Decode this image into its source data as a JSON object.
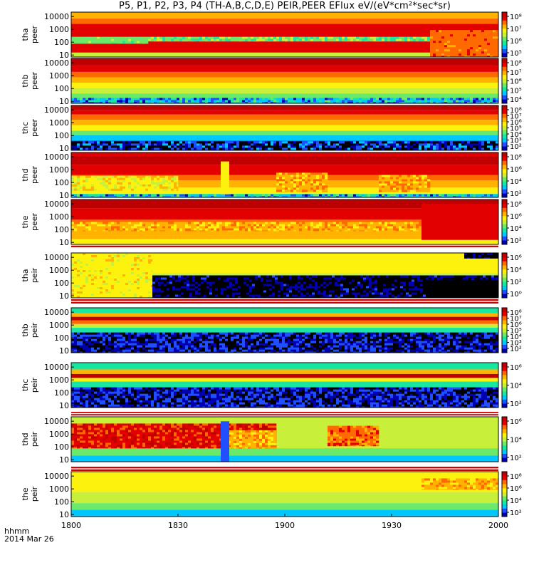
{
  "title": "P5, P1, P2, P3, P4 (TH-A,B,C,D,E) PEIR,PEER EFlux eV/(eV*cm²*sec*sr)",
  "footer": {
    "time_label": "hhmm",
    "date_label": "2014 Mar 26"
  },
  "colors": {
    "spectrum": [
      "#000000",
      "#0000b0",
      "#1f4fff",
      "#00c8ff",
      "#19e6a0",
      "#6be96b",
      "#c8ef3a",
      "#fdf10e",
      "#ffb300",
      "#ff6a00",
      "#e20000",
      "#c00000"
    ]
  },
  "chart_data": {
    "type": "heatmap",
    "x_axis": {
      "tick_labels": [
        "1800",
        "1830",
        "1900",
        "1930",
        "2000"
      ],
      "range": [
        "18:00",
        "20:00"
      ]
    },
    "y_axis": {
      "scale": "log",
      "tick_labels": [
        "10",
        "100",
        "1000",
        "10000"
      ]
    },
    "colorbar_scale": "log",
    "panels": [
      {
        "id": "tha-peer",
        "ylabel_top": "tha",
        "ylabel_bottom": "peer",
        "colorbar_ticks": [
          "10⁵",
          "10⁶",
          "10⁷",
          "10⁸"
        ],
        "y_rows": [
          [
            0.0,
            0.74,
            10
          ],
          [
            0.74,
            0.86,
            9
          ],
          [
            0.86,
            1.0,
            8
          ]
        ],
        "features": [
          {
            "x": [
              0.0,
              1.0
            ],
            "y": [
              0.0,
              0.1
            ],
            "level": 6
          },
          {
            "x": [
              0.0,
              0.18
            ],
            "y": [
              0.3,
              0.45
            ],
            "level": 5,
            "noise": 0.2
          },
          {
            "x": [
              0.18,
              0.86
            ],
            "y": [
              0.35,
              0.45
            ],
            "level": 5,
            "noise": 0.4
          },
          {
            "x": [
              0.84,
              1.0
            ],
            "y": [
              0.0,
              0.6
            ],
            "level": 9,
            "noise": 0.2
          }
        ]
      },
      {
        "id": "thb-peer",
        "ylabel_top": "thb",
        "ylabel_bottom": "peer",
        "colorbar_ticks": [
          "10⁴",
          "10⁵",
          "10⁶",
          "10⁷",
          "10⁸"
        ],
        "y_rows": [
          [
            0.0,
            0.1,
            4
          ],
          [
            0.1,
            0.22,
            5
          ],
          [
            0.22,
            0.34,
            6
          ],
          [
            0.34,
            0.46,
            7
          ],
          [
            0.46,
            0.58,
            8
          ],
          [
            0.58,
            0.7,
            9
          ],
          [
            0.7,
            0.84,
            10
          ],
          [
            0.84,
            1.0,
            11
          ]
        ],
        "features": [
          {
            "x": [
              0.0,
              1.0
            ],
            "y": [
              0.0,
              0.12
            ],
            "level": 3,
            "noise": 0.6
          }
        ]
      },
      {
        "id": "thc-peer",
        "ylabel_top": "thc",
        "ylabel_bottom": "peer",
        "colorbar_ticks": [
          "10²",
          "10³",
          "10⁴",
          "10⁵",
          "10⁶",
          "10⁷",
          "10⁸"
        ],
        "y_rows": [
          [
            0.0,
            0.12,
            1
          ],
          [
            0.12,
            0.22,
            2
          ],
          [
            0.22,
            0.34,
            3
          ],
          [
            0.34,
            0.44,
            5
          ],
          [
            0.44,
            0.56,
            7
          ],
          [
            0.56,
            0.68,
            8
          ],
          [
            0.68,
            0.8,
            9
          ],
          [
            0.8,
            0.9,
            10
          ],
          [
            0.9,
            1.0,
            11
          ]
        ],
        "features": [
          {
            "x": [
              0.0,
              1.0
            ],
            "y": [
              0.0,
              0.2
            ],
            "level": 1,
            "noise": 0.7
          }
        ]
      },
      {
        "id": "thd-peer",
        "ylabel_top": "thd",
        "ylabel_bottom": "peer",
        "colorbar_ticks": [
          "10²",
          "10⁴",
          "10⁶",
          "10⁸"
        ],
        "y_rows": [
          [
            0.0,
            0.08,
            5
          ],
          [
            0.08,
            0.22,
            7
          ],
          [
            0.22,
            0.38,
            8
          ],
          [
            0.38,
            0.5,
            9
          ],
          [
            0.5,
            0.72,
            10
          ],
          [
            0.72,
            0.92,
            11
          ],
          [
            0.92,
            1.0,
            10
          ]
        ],
        "features": [
          {
            "x": [
              0.0,
              0.25
            ],
            "y": [
              0.15,
              0.48
            ],
            "level": 7,
            "noise": 0.3
          },
          {
            "x": [
              0.35,
              0.37
            ],
            "y": [
              0.0,
              0.8
            ],
            "level": 7
          },
          {
            "x": [
              0.48,
              0.6
            ],
            "y": [
              0.12,
              0.55
            ],
            "level": 8,
            "noise": 0.3
          },
          {
            "x": [
              0.72,
              0.84
            ],
            "y": [
              0.12,
              0.5
            ],
            "level": 8,
            "noise": 0.3
          },
          {
            "x": [
              0.0,
              1.0
            ],
            "y": [
              0.0,
              0.07
            ],
            "level": 3,
            "noise": 0.6
          }
        ]
      },
      {
        "id": "the-peer",
        "ylabel_top": "the",
        "ylabel_bottom": "peer",
        "colorbar_ticks": [
          "10²",
          "10⁴",
          "10⁶",
          "10⁸"
        ],
        "y_rows": [
          [
            0.0,
            0.12,
            7
          ],
          [
            0.12,
            0.3,
            8
          ],
          [
            0.3,
            0.55,
            9
          ],
          [
            0.55,
            0.8,
            10
          ],
          [
            0.8,
            1.0,
            11
          ]
        ],
        "features": [
          {
            "x": [
              0.0,
              0.82
            ],
            "y": [
              0.3,
              0.5
            ],
            "level": 8,
            "noise": 0.3
          },
          {
            "x": [
              0.82,
              1.0
            ],
            "y": [
              0.1,
              0.9
            ],
            "level": 10
          }
        ]
      },
      {
        "id": "tha-peir",
        "ylabel_top": "tha",
        "ylabel_bottom": "peir",
        "colorbar_ticks": [
          "10⁰",
          "10²",
          "10⁴",
          "10⁶"
        ],
        "y_rows": [
          [
            0.0,
            0.2,
            6
          ],
          [
            0.2,
            0.55,
            6
          ],
          [
            0.55,
            1.0,
            7
          ]
        ],
        "features": [
          {
            "x": [
              0.0,
              0.19
            ],
            "y": [
              0.0,
              1.0
            ],
            "level": 7,
            "noise": 0.2
          },
          {
            "x": [
              0.19,
              1.0
            ],
            "y": [
              0.0,
              0.5
            ],
            "level": 0,
            "noise": 0.55
          },
          {
            "x": [
              0.83,
              1.0
            ],
            "y": [
              0.0,
              0.4
            ],
            "level": 0
          },
          {
            "x": [
              0.92,
              1.0
            ],
            "y": [
              0.88,
              1.0
            ],
            "level": 0,
            "noise": 0.5
          }
        ]
      },
      {
        "id": "thb-peir",
        "ylabel_top": "thb",
        "ylabel_bottom": "peir",
        "colorbar_ticks": [
          "10²",
          "10³",
          "10⁴",
          "10⁵",
          "10⁶",
          "10⁷",
          "10⁸"
        ],
        "y_rows": [
          [
            0.0,
            0.45,
            2
          ],
          [
            0.45,
            0.56,
            4
          ],
          [
            0.56,
            0.64,
            6
          ],
          [
            0.64,
            0.72,
            9
          ],
          [
            0.72,
            0.8,
            11
          ],
          [
            0.8,
            0.88,
            8
          ],
          [
            0.88,
            1.0,
            4
          ]
        ],
        "features": [
          {
            "x": [
              0.0,
              1.0
            ],
            "y": [
              0.0,
              0.45
            ],
            "level": 1,
            "noise": 0.5
          }
        ]
      },
      {
        "id": "thc-peir",
        "ylabel_top": "thc",
        "ylabel_bottom": "peir",
        "colorbar_ticks": [
          "10²",
          "10⁴",
          "10⁶"
        ],
        "y_rows": [
          [
            0.0,
            0.45,
            2
          ],
          [
            0.45,
            0.58,
            4
          ],
          [
            0.58,
            0.66,
            7
          ],
          [
            0.66,
            0.75,
            11
          ],
          [
            0.75,
            0.85,
            8
          ],
          [
            0.85,
            1.0,
            4
          ]
        ],
        "features": [
          {
            "x": [
              0.0,
              1.0
            ],
            "y": [
              0.0,
              0.45
            ],
            "level": 1,
            "noise": 0.5
          }
        ]
      },
      {
        "id": "thd-peir",
        "ylabel_top": "thd",
        "ylabel_bottom": "peir",
        "colorbar_ticks": [
          "10²",
          "10⁴",
          "10⁶"
        ],
        "y_rows": [
          [
            0.0,
            0.14,
            3
          ],
          [
            0.14,
            0.3,
            5
          ],
          [
            0.3,
            1.0,
            6
          ]
        ],
        "features": [
          {
            "x": [
              0.0,
              0.48
            ],
            "y": [
              0.3,
              0.85
            ],
            "level": 10,
            "noise": 0.3
          },
          {
            "x": [
              0.36,
              0.48
            ],
            "y": [
              0.3,
              0.7
            ],
            "level": 8,
            "noise": 0.3
          },
          {
            "x": [
              0.6,
              0.72
            ],
            "y": [
              0.35,
              0.8
            ],
            "level": 9,
            "noise": 0.3
          },
          {
            "x": [
              0.35,
              0.37
            ],
            "y": [
              0.0,
              0.9
            ],
            "level": 2
          }
        ]
      },
      {
        "id": "the-peir",
        "ylabel_top": "the",
        "ylabel_bottom": "peir",
        "colorbar_ticks": [
          "10²",
          "10⁴",
          "10⁶",
          "10⁸"
        ],
        "y_rows": [
          [
            0.0,
            0.15,
            3
          ],
          [
            0.15,
            0.3,
            5
          ],
          [
            0.3,
            0.55,
            6
          ],
          [
            0.55,
            1.0,
            7
          ]
        ],
        "features": [
          {
            "x": [
              0.82,
              1.0
            ],
            "y": [
              0.6,
              0.85
            ],
            "level": 8,
            "noise": 0.3
          }
        ]
      }
    ]
  }
}
